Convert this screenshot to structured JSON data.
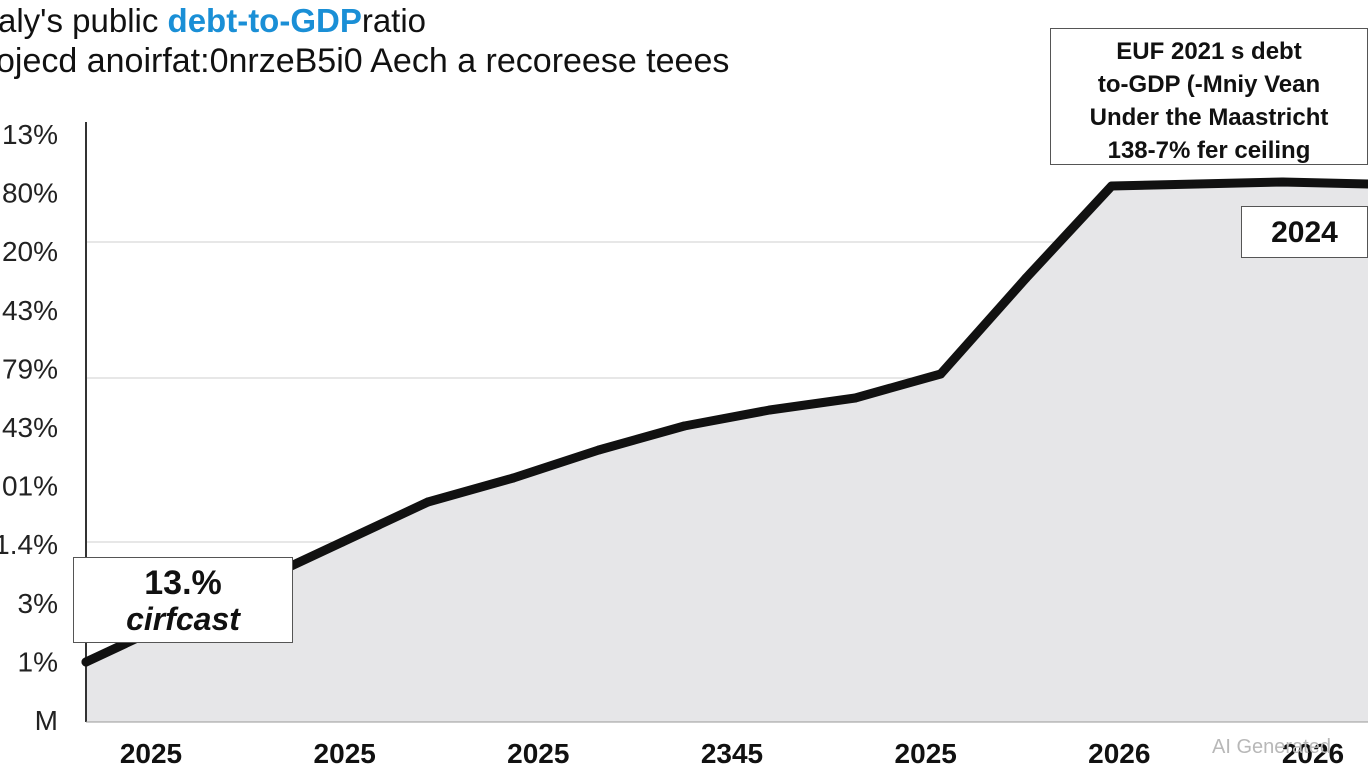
{
  "title": {
    "line1_prefix": "aly's public ",
    "line1_highlight": "debt-to-GDP",
    "line1_suffix": "ratio",
    "line2": "ojecd anoirfat:0nrzeB5i0 Aech a recoreese teees"
  },
  "eu_box": {
    "lines": [
      "EUF 2021 s debt",
      "to-GDP (-Mniy Vean",
      "Under the Maastricht",
      "138-7% fer ceiling"
    ]
  },
  "callouts": {
    "left_value": "13.%",
    "left_label": "cirfcast",
    "right_year": "2024"
  },
  "watermark": "AI Generated",
  "colors": {
    "line": "#111111",
    "area_fill": "#e6e6e8",
    "grid": "#cfcfcf",
    "title_highlight": "#1a8fd6"
  },
  "chart_data": {
    "type": "area",
    "title": "aly's public debt-to-GDP ratio",
    "xlabel": "",
    "ylabel": "",
    "y_tick_labels": [
      "13%",
      "80%",
      "20%",
      "43%",
      "79%",
      "43%",
      "01%",
      "1.4%",
      "3%",
      "1%",
      "M"
    ],
    "x_tick_labels": [
      "2025",
      "2025",
      "2025",
      "2345",
      "2025",
      "2026",
      "2026"
    ],
    "grid": true,
    "x": [
      0,
      1,
      2,
      3,
      4,
      5,
      6,
      7,
      8,
      9,
      10,
      11,
      12,
      13,
      14,
      15
    ],
    "values": [
      1.5,
      2.5,
      3.5,
      4.5,
      5.5,
      6.1,
      6.8,
      7.4,
      7.8,
      8.1,
      8.7,
      11.1,
      13.4,
      13.45,
      13.5,
      13.45
    ],
    "ylim": [
      0,
      15
    ],
    "grid_values": [
      1.5,
      4.5,
      8.6,
      12.0
    ]
  }
}
